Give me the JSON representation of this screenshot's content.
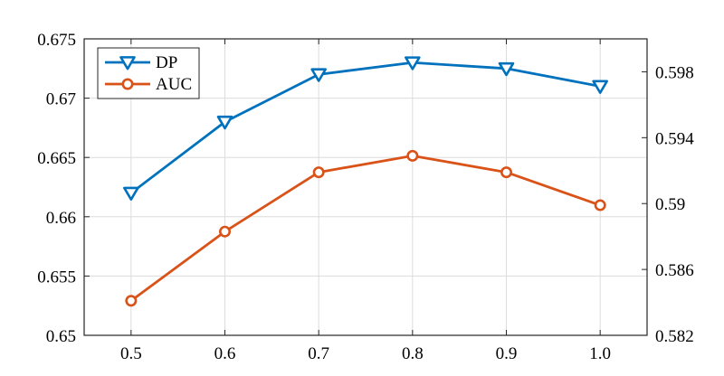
{
  "chart_data": {
    "type": "line",
    "x": [
      0.5,
      0.6,
      0.7,
      0.8,
      0.9,
      1.0
    ],
    "x_tick_labels": [
      "0.5",
      "0.6",
      "0.7",
      "0.8",
      "0.9",
      "1.0"
    ],
    "xlim": [
      0.45,
      1.05
    ],
    "y_left": {
      "lim": [
        0.65,
        0.675
      ],
      "ticks": [
        0.65,
        0.655,
        0.66,
        0.665,
        0.67,
        0.675
      ],
      "tick_labels": [
        "0.65",
        "0.655",
        "0.66",
        "0.665",
        "0.67",
        "0.675"
      ]
    },
    "y_right": {
      "lim": [
        0.582,
        0.6
      ],
      "ticks": [
        0.582,
        0.586,
        0.59,
        0.594,
        0.598
      ],
      "tick_labels": [
        "0.582",
        "0.586",
        "0.59",
        "0.594",
        "0.598"
      ]
    },
    "grid": true,
    "legend_position": "top-left",
    "series": [
      {
        "name": "DP",
        "axis": "left",
        "marker": "triangle-down",
        "color": "#0072BD",
        "values": [
          0.662,
          0.668,
          0.672,
          0.673,
          0.6725,
          0.671
        ]
      },
      {
        "name": "AUC",
        "axis": "right",
        "marker": "circle",
        "color": "#D95319",
        "values": [
          0.5841,
          0.5883,
          0.5919,
          0.5929,
          0.5919,
          0.5899
        ]
      }
    ]
  }
}
